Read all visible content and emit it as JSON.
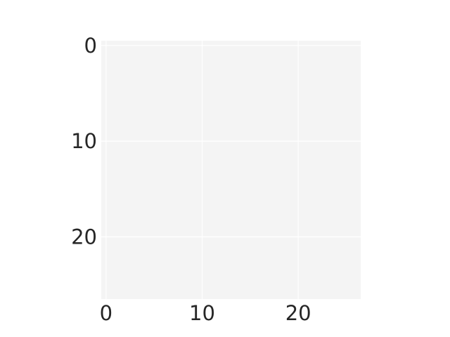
{
  "chart_data": {
    "type": "heatmap",
    "x_ticks": [
      0,
      10,
      20
    ],
    "y_ticks": [
      0,
      10,
      20
    ],
    "xlim": [
      -0.5,
      26.5
    ],
    "ylim": [
      26.5,
      -0.5
    ],
    "y_inverted": true,
    "grid": true,
    "values": [],
    "colors": {
      "plot_background": "#f4f4f4",
      "grid_line": "#ffffff",
      "tick_label": "#262626",
      "page_background": "#ffffff"
    }
  }
}
